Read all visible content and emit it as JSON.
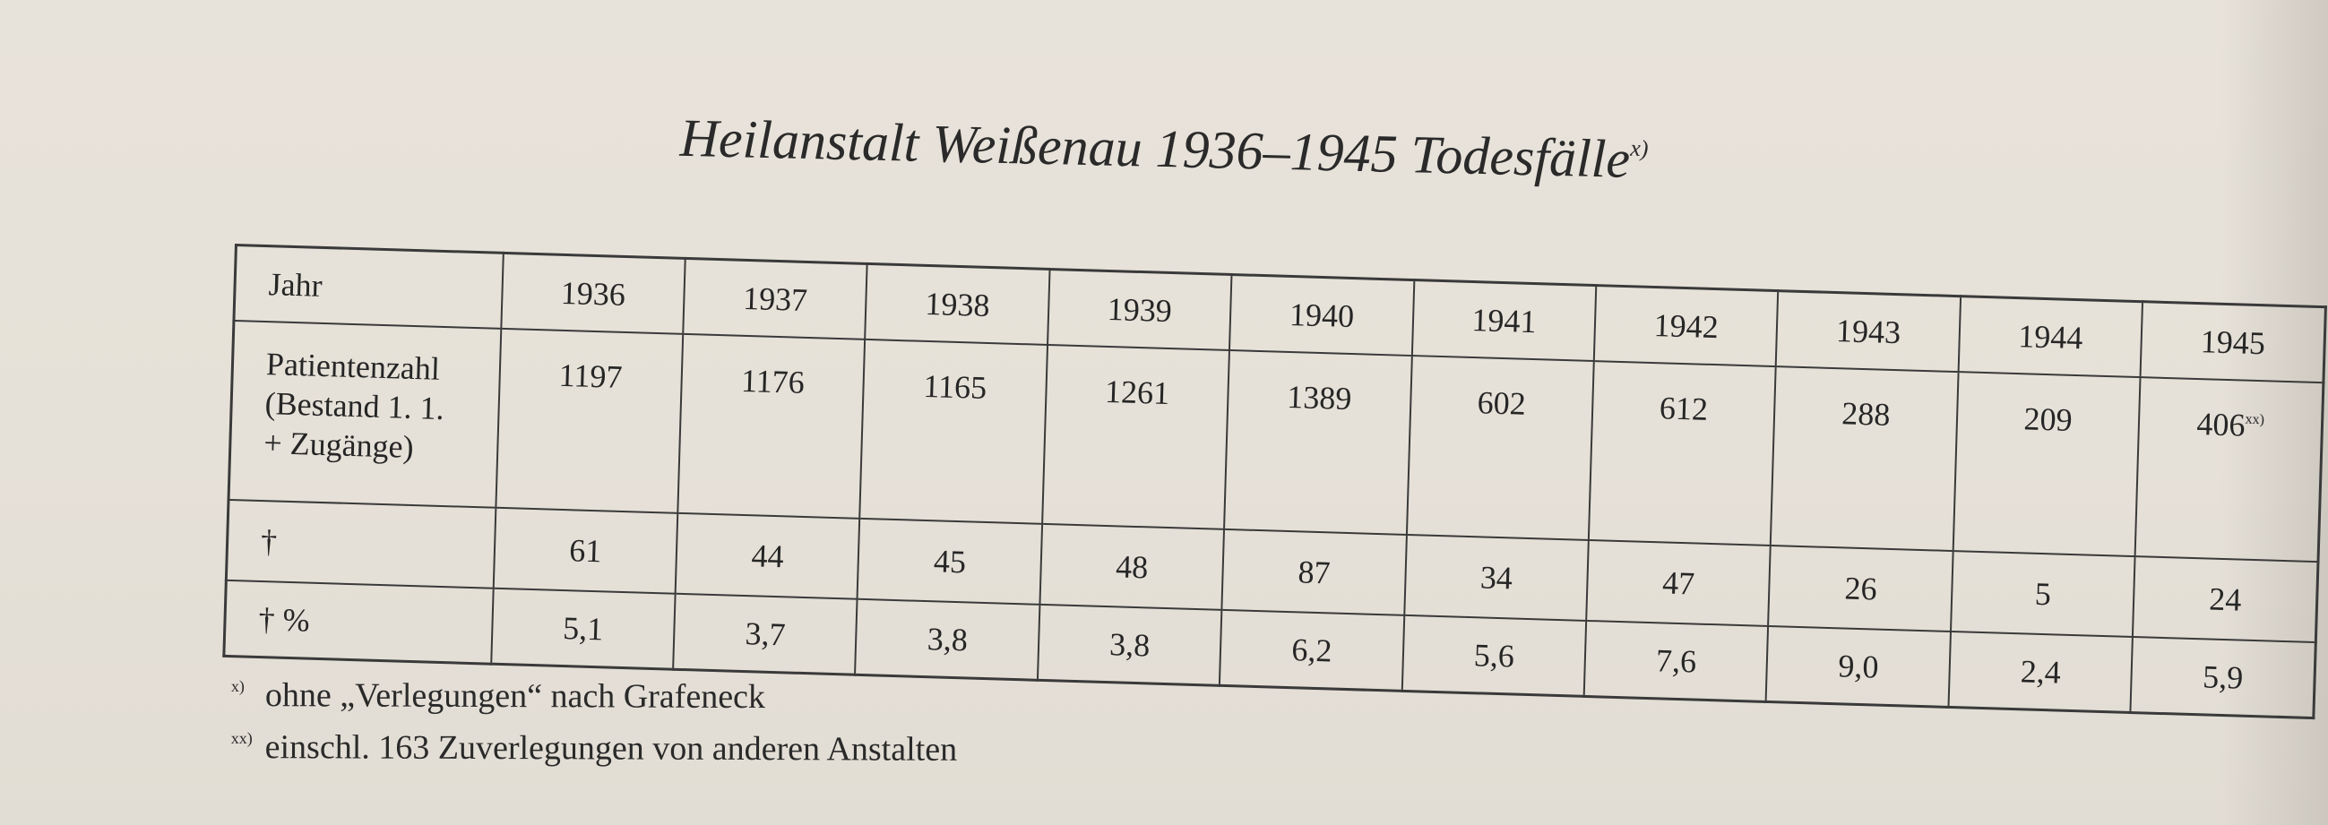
{
  "title": {
    "text": "Heilanstalt Weißenau 1936–1945 Todesfälle",
    "marker": "x)"
  },
  "table": {
    "row_labels": {
      "year": "Jahr",
      "patients": [
        "Patientenzahl",
        "(Bestand 1. 1.",
        "+ Zugänge)"
      ],
      "deaths": "†",
      "percent": "† %"
    },
    "years": [
      "1936",
      "1937",
      "1938",
      "1939",
      "1940",
      "1941",
      "1942",
      "1943",
      "1944",
      "1945"
    ],
    "patients": [
      "1197",
      "1176",
      "1165",
      "1261",
      "1389",
      "602",
      "612",
      "288",
      "209",
      "406"
    ],
    "patients_1945_marker": "xx)",
    "deaths": [
      "61",
      "44",
      "45",
      "48",
      "87",
      "34",
      "47",
      "26",
      "5",
      "24"
    ],
    "percent": [
      "5,1",
      "3,7",
      "3,8",
      "3,8",
      "6,2",
      "5,6",
      "7,6",
      "9,0",
      "2,4",
      "5,9"
    ]
  },
  "footnotes": [
    {
      "marker": "x)",
      "text": "ohne „Verlegungen“ nach Grafeneck"
    },
    {
      "marker": "xx)",
      "text": "einschl. 163 Zuverlegungen von anderen Anstalten"
    }
  ]
}
